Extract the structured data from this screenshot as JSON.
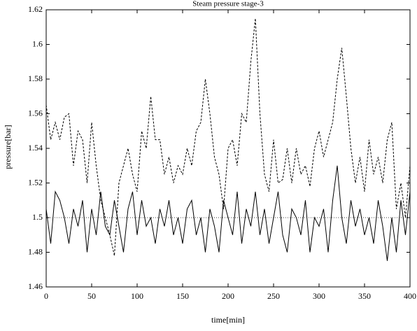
{
  "chart_data": {
    "type": "line",
    "title": "Steam pressure stage-3",
    "xlabel": "time[min]",
    "ylabel": "pressure[bar]",
    "x": [
      0,
      5,
      10,
      15,
      20,
      25,
      30,
      35,
      40,
      45,
      50,
      55,
      60,
      65,
      70,
      75,
      80,
      85,
      90,
      95,
      100,
      105,
      110,
      115,
      120,
      125,
      130,
      135,
      140,
      145,
      150,
      155,
      160,
      165,
      170,
      175,
      180,
      185,
      190,
      195,
      200,
      205,
      210,
      215,
      220,
      225,
      230,
      235,
      240,
      245,
      250,
      255,
      260,
      265,
      270,
      275,
      280,
      285,
      290,
      295,
      300,
      305,
      310,
      315,
      320,
      325,
      330,
      335,
      340,
      345,
      350,
      355,
      360,
      365,
      370,
      375,
      380,
      385,
      390,
      395,
      400
    ],
    "series": [
      {
        "color": "#000000",
        "dash": true,
        "values": [
          1.565,
          1.545,
          1.555,
          1.545,
          1.558,
          1.56,
          1.53,
          1.55,
          1.545,
          1.52,
          1.555,
          1.53,
          1.51,
          1.5,
          1.49,
          1.478,
          1.52,
          1.53,
          1.54,
          1.525,
          1.515,
          1.55,
          1.54,
          1.57,
          1.545,
          1.545,
          1.525,
          1.535,
          1.52,
          1.53,
          1.525,
          1.54,
          1.53,
          1.55,
          1.555,
          1.58,
          1.56,
          1.535,
          1.525,
          1.505,
          1.54,
          1.545,
          1.53,
          1.56,
          1.555,
          1.59,
          1.615,
          1.56,
          1.525,
          1.515,
          1.545,
          1.52,
          1.522,
          1.54,
          1.52,
          1.54,
          1.525,
          1.53,
          1.518,
          1.54,
          1.55,
          1.535,
          1.545,
          1.555,
          1.58,
          1.598,
          1.57,
          1.54,
          1.52,
          1.535,
          1.515,
          1.545,
          1.525,
          1.535,
          1.52,
          1.545,
          1.555,
          1.505,
          1.52,
          1.5,
          1.53
        ]
      },
      {
        "color": "#000000",
        "dash": false,
        "values": [
          1.505,
          1.485,
          1.515,
          1.51,
          1.5,
          1.485,
          1.505,
          1.495,
          1.51,
          1.48,
          1.505,
          1.49,
          1.515,
          1.495,
          1.49,
          1.51,
          1.495,
          1.48,
          1.505,
          1.515,
          1.49,
          1.51,
          1.495,
          1.5,
          1.485,
          1.505,
          1.495,
          1.51,
          1.49,
          1.5,
          1.485,
          1.505,
          1.51,
          1.49,
          1.5,
          1.48,
          1.505,
          1.495,
          1.48,
          1.51,
          1.5,
          1.49,
          1.515,
          1.485,
          1.505,
          1.495,
          1.515,
          1.49,
          1.505,
          1.485,
          1.5,
          1.515,
          1.49,
          1.48,
          1.505,
          1.5,
          1.49,
          1.51,
          1.48,
          1.5,
          1.495,
          1.505,
          1.48,
          1.51,
          1.53,
          1.5,
          1.485,
          1.51,
          1.495,
          1.505,
          1.49,
          1.5,
          1.485,
          1.51,
          1.495,
          1.475,
          1.5,
          1.48,
          1.51,
          1.49,
          1.515
        ]
      }
    ],
    "reference_line": 1.5,
    "xlim": [
      0,
      400
    ],
    "xticks": [
      0,
      50,
      100,
      150,
      200,
      250,
      300,
      350,
      400
    ],
    "ylim": [
      1.46,
      1.62
    ],
    "yticks": [
      1.46,
      1.48,
      1.5,
      1.52,
      1.54,
      1.56,
      1.58,
      1.6,
      1.62
    ]
  }
}
